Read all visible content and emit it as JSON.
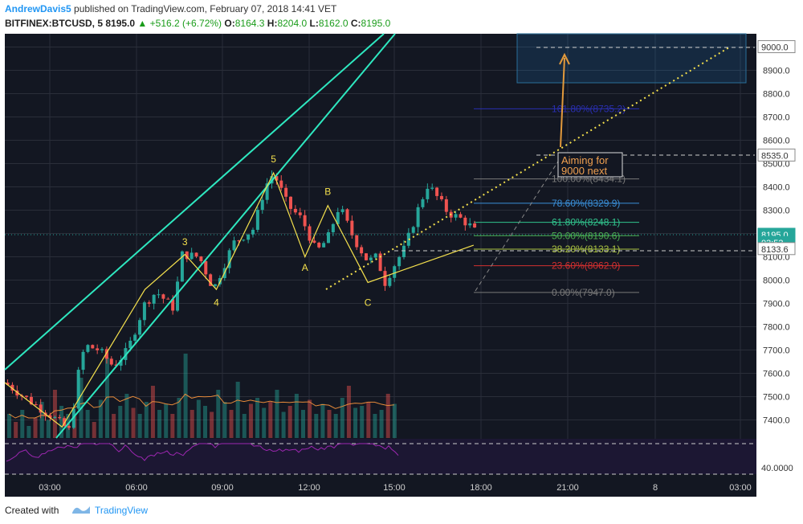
{
  "header": {
    "author": "AndrewDavis5",
    "published_text": " published on TradingView.com, February 07, 2018 14:41 VET",
    "symbol": "BITFINEX:BTCUSD, 5",
    "last": "8195.0",
    "change": "+516.2 (+6.72%)",
    "open_label": "O:",
    "open": "8164.3",
    "high_label": "H:",
    "high": "8204.0",
    "low_label": "L:",
    "low": "8162.0",
    "close_label": "C:",
    "close": "8195.0"
  },
  "footer": {
    "created": "Created with",
    "brand": "TradingView"
  },
  "colors": {
    "background": "#131722",
    "up": "#26a69a",
    "down": "#ef5350",
    "channel": "#2ee8c0",
    "wave": "#f4e04d",
    "rsi": "#9c27b0"
  },
  "chart_data": {
    "type": "candlestick",
    "time_ticks": [
      "03:00",
      "06:00",
      "09:00",
      "12:00",
      "15:00",
      "18:00",
      "21:00",
      "8",
      "03:00"
    ],
    "price_ticks": [
      "9000.0",
      "8900.0",
      "8800.0",
      "8700.0",
      "8600.0",
      "8500.0",
      "8400.0",
      "8300.0",
      "8200.0",
      "8100.0",
      "8000.0",
      "7900.0",
      "7800.0",
      "7700.0",
      "7600.0",
      "7500.0",
      "7400.0"
    ],
    "price_range": [
      7330,
      9060
    ],
    "price_badges": [
      {
        "label": "9000.0",
        "value": 9000
      },
      {
        "label": "8535.0",
        "value": 8535
      },
      {
        "label": "8195.0",
        "value": 8195,
        "highlight": true
      },
      {
        "label": "03:53",
        "value": 8160,
        "highlight": true
      },
      {
        "label": "8133.6",
        "value": 8133.6
      }
    ],
    "rsi_label": "40.0000",
    "price_path": [
      [
        0,
        7560
      ],
      [
        0.9,
        7480
      ],
      [
        1.6,
        7420
      ],
      [
        2.3,
        7350
      ],
      [
        2.5,
        7560
      ],
      [
        2.8,
        7720
      ],
      [
        3.3,
        7700
      ],
      [
        3.8,
        7630
      ],
      [
        4.3,
        7700
      ],
      [
        4.9,
        7900
      ],
      [
        5.3,
        7950
      ],
      [
        5.9,
        7880
      ],
      [
        6.2,
        8110
      ],
      [
        6.8,
        8100
      ],
      [
        7.3,
        7960
      ],
      [
        8.0,
        8160
      ],
      [
        8.7,
        8220
      ],
      [
        9.1,
        8400
      ],
      [
        9.4,
        8460
      ],
      [
        9.9,
        8320
      ],
      [
        10.4,
        8260
      ],
      [
        10.9,
        8120
      ],
      [
        11.3,
        8180
      ],
      [
        11.7,
        8320
      ],
      [
        12.2,
        8180
      ],
      [
        12.7,
        8080
      ],
      [
        13.0,
        8100
      ],
      [
        13.3,
        7990
      ],
      [
        13.6,
        8060
      ],
      [
        14.0,
        8140
      ],
      [
        14.5,
        8320
      ],
      [
        14.8,
        8410
      ],
      [
        15.1,
        8360
      ],
      [
        15.5,
        8290
      ],
      [
        16.0,
        8260
      ],
      [
        16.4,
        8220
      ],
      [
        16.5,
        8195
      ]
    ],
    "volume_values": [
      60,
      40,
      70,
      30,
      50,
      90,
      45,
      120,
      80,
      60,
      55,
      150,
      70,
      40,
      95,
      200,
      60,
      80,
      110,
      75,
      60,
      90,
      130,
      70,
      85,
      60,
      100,
      210,
      70,
      95,
      80,
      65,
      120,
      90,
      70,
      140,
      60,
      85,
      100,
      75,
      90,
      120,
      65,
      80,
      110,
      70,
      95,
      60,
      85,
      70,
      60,
      100,
      130,
      75,
      80,
      90,
      60,
      70,
      110,
      85
    ],
    "fib_levels": [
      {
        "label": "161.80%(8735.2)",
        "value": 8735.2,
        "color": "#2a2fb0"
      },
      {
        "label": "100.00%(8434.1)",
        "value": 8434.1,
        "color": "#7a7a7a"
      },
      {
        "label": "78.60%(8329.9)",
        "value": 8329.9,
        "color": "#3a8fd8"
      },
      {
        "label": "61.80%(8248.1)",
        "value": 8248.1,
        "color": "#31c48d"
      },
      {
        "label": "50.00%(8190.6)",
        "value": 8190.6,
        "color": "#4caf50"
      },
      {
        "label": "38.20%(8133.1)",
        "value": 8133.1,
        "color": "#a8c040"
      },
      {
        "label": "23.60%(8062.0)",
        "value": 8062.0,
        "color": "#d32f2f"
      },
      {
        "label": "0.00%(7947.0)",
        "value": 7947.0,
        "color": "#7a7a7a"
      }
    ],
    "wave_labels": [
      {
        "label": "3",
        "h": 6.3,
        "value": 8150
      },
      {
        "label": "4",
        "h": 7.4,
        "value": 7890
      },
      {
        "label": "5",
        "h": 9.4,
        "value": 8505
      },
      {
        "label": "A",
        "h": 10.5,
        "value": 8040
      },
      {
        "label": "B",
        "h": 11.3,
        "value": 8365
      },
      {
        "label": "C",
        "h": 12.7,
        "value": 7890
      }
    ],
    "annotation": {
      "text_lines": [
        "Aiming for",
        "9000 next"
      ]
    }
  }
}
